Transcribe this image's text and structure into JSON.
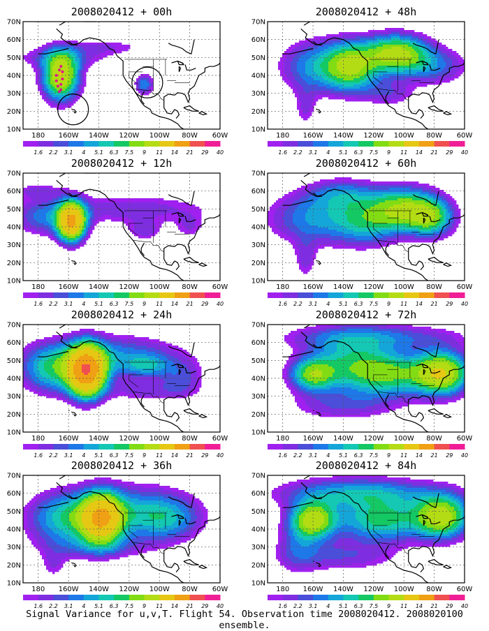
{
  "figure": {
    "caption": "Signal Variance for u,v,T. Flight 54. Observation time 2008020412. 2008020100 ensemble.",
    "x_tick_labels": [
      "180",
      "160W",
      "140W",
      "120W",
      "100W",
      "80W",
      "60W"
    ],
    "y_tick_labels": [
      "10N",
      "20N",
      "30N",
      "40N",
      "50N",
      "60N",
      "70N"
    ],
    "colorbar": {
      "labels": [
        "1.6",
        "2.2",
        "3.1",
        "4",
        "5.1",
        "6.3",
        "7.5",
        "9",
        "11",
        "14",
        "21",
        "29",
        "40"
      ],
      "colors": [
        "#a020f0",
        "#7e2ee0",
        "#4a4ed8",
        "#1e78e8",
        "#14a6d8",
        "#14c8b4",
        "#14c864",
        "#82dc14",
        "#b4dc14",
        "#e6c814",
        "#f0a014",
        "#f05050",
        "#f01e96"
      ]
    },
    "panels": [
      {
        "title": "2008020412 + 00h"
      },
      {
        "title": "2008020412 + 48h"
      },
      {
        "title": "2008020412 + 12h"
      },
      {
        "title": "2008020412 + 60h"
      },
      {
        "title": "2008020412 + 24h"
      },
      {
        "title": "2008020412 + 72h"
      },
      {
        "title": "2008020412 + 36h"
      },
      {
        "title": "2008020412 + 84h"
      }
    ]
  },
  "chart_data": {
    "type": "heatmap",
    "variable": "Signal Variance for u,v,T",
    "domain": {
      "lon_range": [
        -190,
        -60
      ],
      "lat_range": [
        10,
        70
      ],
      "projection": "lat-lon"
    },
    "flight": "54",
    "observation_time": "2008020412",
    "ensemble": "2008020100",
    "contour_levels": [
      1.6,
      2.2,
      3.1,
      4,
      5.1,
      6.3,
      7.5,
      9,
      11,
      14,
      21,
      29,
      40
    ],
    "flight_track_00h": [
      [
        -166,
        31
      ],
      [
        -167,
        34
      ],
      [
        -168,
        37
      ],
      [
        -168,
        40
      ],
      [
        -166,
        43
      ],
      [
        -165,
        45
      ],
      [
        -164,
        42
      ],
      [
        -164,
        38
      ],
      [
        -165,
        35
      ],
      [
        -165,
        32
      ]
    ],
    "panels": [
      {
        "lead_hours": 0,
        "features": [
          {
            "lon": -165,
            "lat": 40,
            "sx": 8,
            "sy": 9,
            "peak": 14
          },
          {
            "lon": -110,
            "lat": 35,
            "sx": 4,
            "sy": 4,
            "peak": 5
          },
          {
            "lon": -165,
            "lat": 50,
            "sx": 24,
            "sy": 4,
            "peak": 2.6
          },
          {
            "lon": -135,
            "lat": 56,
            "sx": 20,
            "sy": 3,
            "peak": 2
          }
        ]
      },
      {
        "lead_hours": 12,
        "features": [
          {
            "lon": -158,
            "lat": 43,
            "sx": 6,
            "sy": 7,
            "peak": 21
          },
          {
            "lon": -175,
            "lat": 45,
            "sx": 14,
            "sy": 7,
            "peak": 4
          },
          {
            "lon": -120,
            "lat": 50,
            "sx": 40,
            "sy": 6,
            "peak": 2.8
          },
          {
            "lon": -110,
            "lat": 38,
            "sx": 8,
            "sy": 4,
            "peak": 2.6
          },
          {
            "lon": -180,
            "lat": 60,
            "sx": 12,
            "sy": 3,
            "peak": 2.3
          },
          {
            "lon": -80,
            "lat": 40,
            "sx": 7,
            "sy": 5,
            "peak": 2
          }
        ]
      },
      {
        "lead_hours": 24,
        "features": [
          {
            "lon": -148,
            "lat": 44,
            "sx": 8,
            "sy": 9,
            "peak": 26
          },
          {
            "lon": -170,
            "lat": 45,
            "sx": 14,
            "sy": 9,
            "peak": 7
          },
          {
            "lon": -130,
            "lat": 52,
            "sx": 30,
            "sy": 8,
            "peak": 5
          },
          {
            "lon": -108,
            "lat": 47,
            "sx": 10,
            "sy": 4,
            "peak": 4
          },
          {
            "lon": -85,
            "lat": 40,
            "sx": 10,
            "sy": 7,
            "peak": 3
          },
          {
            "lon": -110,
            "lat": 33,
            "sx": 20,
            "sy": 4,
            "peak": 2.4
          }
        ]
      },
      {
        "lead_hours": 36,
        "features": [
          {
            "lon": -138,
            "lat": 46,
            "sx": 9,
            "sy": 9,
            "peak": 18
          },
          {
            "lon": -160,
            "lat": 46,
            "sx": 18,
            "sy": 10,
            "peak": 7
          },
          {
            "lon": -115,
            "lat": 50,
            "sx": 25,
            "sy": 10,
            "peak": 5
          },
          {
            "lon": -95,
            "lat": 45,
            "sx": 15,
            "sy": 8,
            "peak": 4
          },
          {
            "lon": -140,
            "lat": 30,
            "sx": 25,
            "sy": 5,
            "peak": 2.5
          },
          {
            "lon": -170,
            "lat": 20,
            "sx": 6,
            "sy": 6,
            "peak": 2
          }
        ]
      },
      {
        "lead_hours": 48,
        "features": [
          {
            "lon": -135,
            "lat": 45,
            "sx": 12,
            "sy": 9,
            "peak": 11
          },
          {
            "lon": -105,
            "lat": 52,
            "sx": 14,
            "sy": 7,
            "peak": 12
          },
          {
            "lon": -160,
            "lat": 45,
            "sx": 15,
            "sy": 10,
            "peak": 5
          },
          {
            "lon": -80,
            "lat": 45,
            "sx": 15,
            "sy": 7,
            "peak": 4
          },
          {
            "lon": -110,
            "lat": 30,
            "sx": 12,
            "sy": 5,
            "peak": 2.8
          },
          {
            "lon": -165,
            "lat": 22,
            "sx": 5,
            "sy": 8,
            "peak": 2.2
          }
        ]
      },
      {
        "lead_hours": 60,
        "features": [
          {
            "lon": -100,
            "lat": 50,
            "sx": 15,
            "sy": 8,
            "peak": 10
          },
          {
            "lon": -82,
            "lat": 45,
            "sx": 10,
            "sy": 7,
            "peak": 8
          },
          {
            "lon": -125,
            "lat": 43,
            "sx": 15,
            "sy": 9,
            "peak": 6
          },
          {
            "lon": -160,
            "lat": 45,
            "sx": 20,
            "sy": 10,
            "peak": 5
          },
          {
            "lon": -140,
            "lat": 58,
            "sx": 15,
            "sy": 6,
            "peak": 4
          },
          {
            "lon": -165,
            "lat": 22,
            "sx": 5,
            "sy": 8,
            "peak": 2.5
          }
        ]
      },
      {
        "lead_hours": 72,
        "features": [
          {
            "lon": -75,
            "lat": 43,
            "sx": 12,
            "sy": 8,
            "peak": 13
          },
          {
            "lon": -160,
            "lat": 42,
            "sx": 10,
            "sy": 6,
            "peak": 9
          },
          {
            "lon": -110,
            "lat": 42,
            "sx": 20,
            "sy": 8,
            "peak": 8
          },
          {
            "lon": -135,
            "lat": 50,
            "sx": 20,
            "sy": 10,
            "peak": 6
          },
          {
            "lon": -140,
            "lat": 25,
            "sx": 25,
            "sy": 6,
            "peak": 3
          },
          {
            "lon": -120,
            "lat": 63,
            "sx": 40,
            "sy": 5,
            "peak": 4
          }
        ]
      },
      {
        "lead_hours": 84,
        "features": [
          {
            "lon": -160,
            "lat": 45,
            "sx": 10,
            "sy": 7,
            "peak": 12
          },
          {
            "lon": -75,
            "lat": 47,
            "sx": 12,
            "sy": 8,
            "peak": 12
          },
          {
            "lon": -115,
            "lat": 45,
            "sx": 20,
            "sy": 8,
            "peak": 8
          },
          {
            "lon": -130,
            "lat": 60,
            "sx": 35,
            "sy": 6,
            "peak": 6
          },
          {
            "lon": -140,
            "lat": 25,
            "sx": 25,
            "sy": 6,
            "peak": 3
          },
          {
            "lon": -170,
            "lat": 30,
            "sx": 10,
            "sy": 10,
            "peak": 3
          }
        ]
      }
    ]
  }
}
